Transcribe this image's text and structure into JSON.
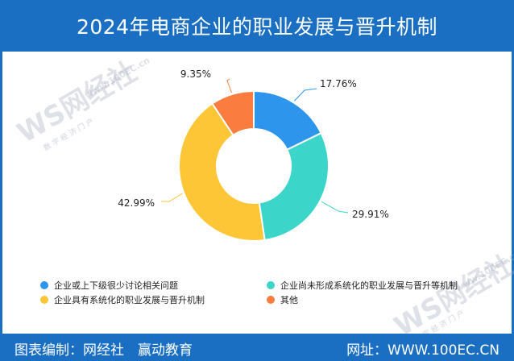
{
  "header": {
    "title": "2024年电商企业的职业发展与晋升机制"
  },
  "footer": {
    "credit": "图表编制：网经社　赢动教育",
    "site": "网址：WWW.100EC.CN"
  },
  "watermark": {
    "logo": "WS网经社",
    "url": "www.100EC.cn",
    "tagline": "数 字 经 济 门 户"
  },
  "colors": {
    "header": "#1a6fc2",
    "blue": "#2e95ec",
    "teal": "#3bd6c9",
    "yellow": "#fcc636",
    "orange": "#fa7c3f"
  },
  "chart_data": {
    "type": "pie",
    "donut": true,
    "title": "2024年电商企业的职业发展与晋升机制",
    "slices": [
      {
        "label": "企业或上下级很少讨论相关问题",
        "value": 17.76,
        "display": "17.76%",
        "color": "#2e95ec"
      },
      {
        "label": "企业尚未形成系统化的职业发展与晋升等机制",
        "value": 29.91,
        "display": "29.91%",
        "color": "#3bd6c9"
      },
      {
        "label": "企业具有系统化的职业发展与晋升机制",
        "value": 42.99,
        "display": "42.99%",
        "color": "#fcc636"
      },
      {
        "label": "其他",
        "value": 9.35,
        "display": "9.35%",
        "color": "#fa7c3f"
      }
    ],
    "legend_position": "bottom"
  }
}
